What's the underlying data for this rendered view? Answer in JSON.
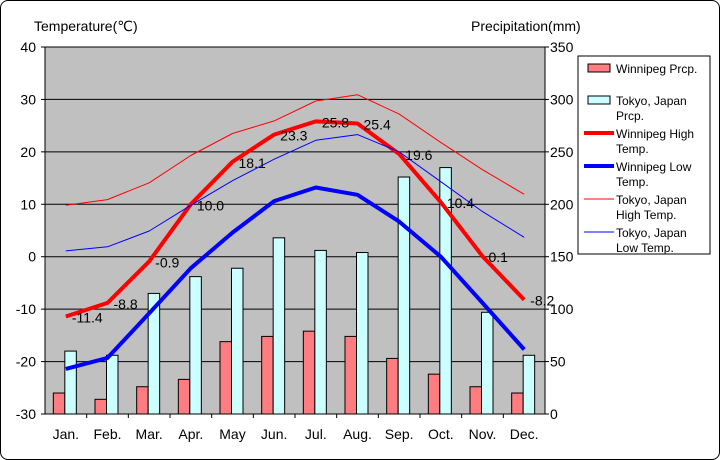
{
  "chart_data": {
    "type": "bar+line",
    "y_left_label": "Temperature(℃)",
    "y_right_label": "Precipitation(mm)",
    "y_left_range": [
      -30,
      40
    ],
    "y_left_ticks": [
      40,
      30,
      20,
      10,
      0,
      -10,
      -20,
      -30
    ],
    "y_right_range": [
      0,
      350
    ],
    "y_right_ticks": [
      350,
      300,
      250,
      200,
      150,
      100,
      50,
      0
    ],
    "categories": [
      "Jan.",
      "Feb.",
      "Mar.",
      "Apr.",
      "May",
      "Jun.",
      "Jul.",
      "Aug.",
      "Sep.",
      "Oct.",
      "Nov.",
      "Dec."
    ],
    "legend_position": "right",
    "colors": {
      "plot_bg": "#c0c0c0",
      "winnipeg_prcp": "#ff7c80",
      "tokyo_prcp": "#ccffff",
      "winnipeg_high": "#ff0000",
      "winnipeg_low": "#0000ff",
      "tokyo_high": "#ff0000",
      "tokyo_low": "#0000ff"
    },
    "series": [
      {
        "key": "winnipeg_prcp",
        "name": "Winnipeg Prcp.",
        "kind": "bar",
        "axis": "right",
        "values": [
          20,
          14,
          26,
          33,
          69,
          74,
          79,
          74,
          53,
          38,
          26,
          20
        ]
      },
      {
        "key": "tokyo_prcp",
        "name": "Tokyo, Japan Prcp.",
        "kind": "bar",
        "axis": "right",
        "values": [
          60,
          56,
          115,
          131,
          139,
          168,
          156,
          154,
          226,
          235,
          97,
          56
        ]
      },
      {
        "key": "winnipeg_high",
        "name": "Winnipeg High Temp.",
        "kind": "line",
        "axis": "left",
        "width": "thick",
        "values": [
          -11.4,
          -8.8,
          -0.9,
          10.0,
          18.1,
          23.3,
          25.8,
          25.4,
          19.6,
          10.4,
          0.1,
          -8.2
        ],
        "labels": [
          "-11.4",
          "-8.8",
          "-0.9",
          "10.0",
          "18.1",
          "23.3",
          "25.8",
          "25.4",
          "19.6",
          "10.4",
          "0.1",
          "-8.2"
        ]
      },
      {
        "key": "winnipeg_low",
        "name": "Winnipeg Low Temp.",
        "kind": "line",
        "axis": "left",
        "width": "thick",
        "values": [
          -21.4,
          -19.3,
          -10.8,
          -2.2,
          4.6,
          10.6,
          13.2,
          11.8,
          6.7,
          0.0,
          -8.8,
          -17.7
        ]
      },
      {
        "key": "tokyo_high",
        "name": "Tokyo, Japan High Temp.",
        "kind": "line",
        "axis": "left",
        "width": "thin",
        "values": [
          9.8,
          10.9,
          14.1,
          19.3,
          23.5,
          25.9,
          29.7,
          30.9,
          27.2,
          21.8,
          16.6,
          11.9
        ]
      },
      {
        "key": "tokyo_low",
        "name": "Tokyo, Japan Low Temp.",
        "kind": "line",
        "axis": "left",
        "width": "thin",
        "values": [
          1.1,
          1.9,
          4.9,
          9.8,
          14.5,
          18.6,
          22.2,
          23.3,
          20.0,
          14.3,
          8.6,
          3.7
        ]
      }
    ]
  }
}
